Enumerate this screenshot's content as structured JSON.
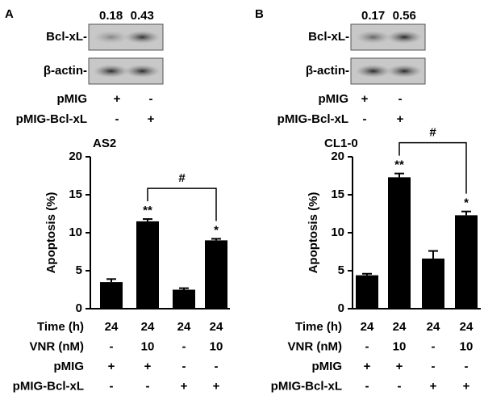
{
  "panels": [
    {
      "letter": "A",
      "blot": {
        "quant": [
          "0.18",
          "0.43"
        ],
        "bands": [
          "Bcl-xL-",
          "β-actin-"
        ],
        "rows": [
          {
            "label": "pMIG",
            "marks": [
              "+",
              "-"
            ]
          },
          {
            "label": "pMIG-Bcl-xL",
            "marks": [
              "-",
              "+"
            ]
          }
        ]
      }
    },
    {
      "letter": "B",
      "blot": {
        "quant": [
          "0.17",
          "0.56"
        ],
        "bands": [
          "Bcl-xL-",
          "β-actin-"
        ],
        "rows": [
          {
            "label": "pMIG",
            "marks": [
              "+",
              "-"
            ]
          },
          {
            "label": "pMIG-Bcl-xL",
            "marks": [
              "-",
              "+"
            ]
          }
        ]
      }
    }
  ],
  "chart_data": [
    {
      "type": "bar",
      "title": "AS2",
      "y_label": "Apoptosis (%)",
      "values": [
        3.5,
        11.5,
        2.5,
        9.0
      ],
      "errors": [
        0.4,
        0.3,
        0.2,
        0.2
      ],
      "color": "#000000",
      "ylim": [
        0,
        20
      ],
      "yticks": [
        0,
        5,
        10,
        15,
        20
      ],
      "annotations": [
        {
          "bar": 1,
          "text": "**"
        },
        {
          "bar": 3,
          "text": "*"
        }
      ],
      "bracket": {
        "from": 1,
        "to": 3,
        "text": "#"
      },
      "conditions": [
        {
          "label": "Time (h)",
          "values": [
            "24",
            "24",
            "24",
            "24"
          ]
        },
        {
          "label": "VNR (nM)",
          "values": [
            "-",
            "10",
            "-",
            "10"
          ]
        },
        {
          "label": "pMIG",
          "values": [
            "+",
            "+",
            "-",
            "-"
          ]
        },
        {
          "label": "pMIG-Bcl-xL",
          "values": [
            "-",
            "-",
            "+",
            "+"
          ]
        }
      ]
    },
    {
      "type": "bar",
      "title": "CL1-0",
      "y_label": "Apoptosis (%)",
      "values": [
        4.4,
        17.3,
        6.6,
        12.3
      ],
      "errors": [
        0.2,
        0.5,
        1.0,
        0.5
      ],
      "color": "#000000",
      "ylim": [
        0,
        20
      ],
      "yticks": [
        0,
        5,
        10,
        15,
        20
      ],
      "annotations": [
        {
          "bar": 1,
          "text": "**"
        },
        {
          "bar": 3,
          "text": "*"
        }
      ],
      "bracket": {
        "from": 1,
        "to": 3,
        "text": "#"
      },
      "conditions": [
        {
          "label": "Time (h)",
          "values": [
            "24",
            "24",
            "24",
            "24"
          ]
        },
        {
          "label": "VNR (nM)",
          "values": [
            "-",
            "10",
            "-",
            "10"
          ]
        },
        {
          "label": "pMIG",
          "values": [
            "+",
            "+",
            "-",
            "-"
          ]
        },
        {
          "label": "pMIG-Bcl-xL",
          "values": [
            "-",
            "-",
            "+",
            "+"
          ]
        }
      ]
    }
  ]
}
